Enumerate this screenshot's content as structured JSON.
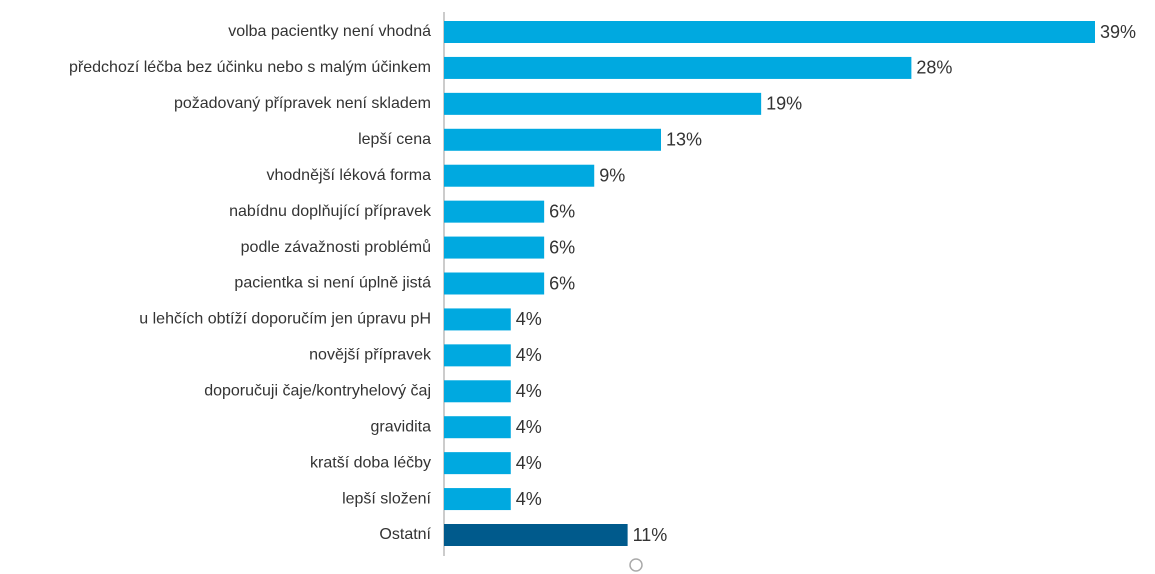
{
  "chart_data": {
    "type": "barh",
    "categories": [
      "volba pacientky není vhodná",
      "předchozí léčba bez účinku nebo s malým účinkem",
      "požadovaný přípravek není skladem",
      "lepší cena",
      "vhodnější léková forma",
      "nabídnu doplňující přípravek",
      "podle závažnosti problémů",
      "pacientka si není úplně jistá",
      "u lehčích obtíží doporučím jen úpravu pH",
      "novější přípravek",
      "doporučuji čaje/kontryhelový čaj",
      "gravidita",
      "kratší doba léčby",
      "lepší složení",
      "Ostatní"
    ],
    "values": [
      39,
      28,
      19,
      13,
      9,
      6,
      6,
      6,
      4,
      4,
      4,
      4,
      4,
      4,
      11
    ],
    "value_labels": [
      "39%",
      "28%",
      "19%",
      "13%",
      "9%",
      "6%",
      "6%",
      "6%",
      "4%",
      "4%",
      "4%",
      "4%",
      "4%",
      "4%",
      "11%"
    ],
    "colors": [
      "#00a9e0",
      "#00a9e0",
      "#00a9e0",
      "#00a9e0",
      "#00a9e0",
      "#00a9e0",
      "#00a9e0",
      "#00a9e0",
      "#00a9e0",
      "#00a9e0",
      "#00a9e0",
      "#00a9e0",
      "#00a9e0",
      "#00a9e0",
      "#005a8c"
    ]
  }
}
